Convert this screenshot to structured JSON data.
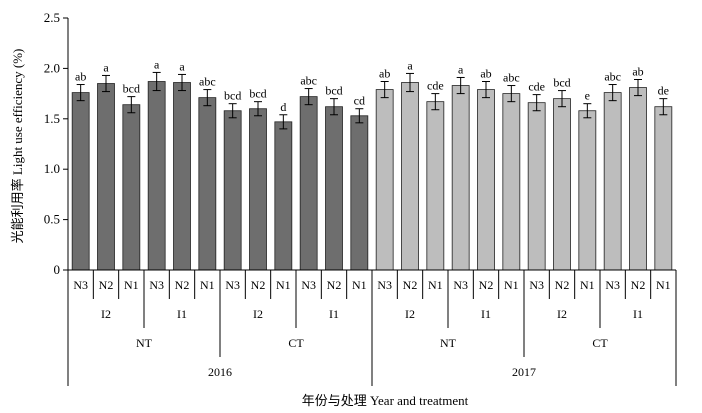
{
  "chart_data": {
    "type": "bar",
    "ylabel": "光能利用率 Light use efficiency (%)",
    "xlabel": "年份与处理 Year and treatment",
    "ylim": [
      0,
      2.5
    ],
    "yticks": [
      "0",
      "0.5",
      "1.0",
      "1.5",
      "2.0",
      "2.5"
    ],
    "ytick_values": [
      0,
      0.5,
      1.0,
      1.5,
      2.0,
      2.5
    ],
    "colors": {
      "2016": "#6e6e6e",
      "2017": "#bdbdbd",
      "edge": "#222222"
    },
    "bars": [
      {
        "year": "2016",
        "tillage": "NT",
        "irrigation": "I2",
        "n": "N3",
        "value": 1.76,
        "error": 0.08,
        "letter": "ab"
      },
      {
        "year": "2016",
        "tillage": "NT",
        "irrigation": "I2",
        "n": "N2",
        "value": 1.85,
        "error": 0.08,
        "letter": "a"
      },
      {
        "year": "2016",
        "tillage": "NT",
        "irrigation": "I2",
        "n": "N1",
        "value": 1.64,
        "error": 0.08,
        "letter": "bcd"
      },
      {
        "year": "2016",
        "tillage": "NT",
        "irrigation": "I1",
        "n": "N3",
        "value": 1.87,
        "error": 0.09,
        "letter": "a"
      },
      {
        "year": "2016",
        "tillage": "NT",
        "irrigation": "I1",
        "n": "N2",
        "value": 1.86,
        "error": 0.08,
        "letter": "a"
      },
      {
        "year": "2016",
        "tillage": "NT",
        "irrigation": "I1",
        "n": "N1",
        "value": 1.71,
        "error": 0.08,
        "letter": "abc"
      },
      {
        "year": "2016",
        "tillage": "CT",
        "irrigation": "I2",
        "n": "N3",
        "value": 1.58,
        "error": 0.07,
        "letter": "bcd"
      },
      {
        "year": "2016",
        "tillage": "CT",
        "irrigation": "I2",
        "n": "N2",
        "value": 1.6,
        "error": 0.07,
        "letter": "bcd"
      },
      {
        "year": "2016",
        "tillage": "CT",
        "irrigation": "I2",
        "n": "N1",
        "value": 1.47,
        "error": 0.07,
        "letter": "d"
      },
      {
        "year": "2016",
        "tillage": "CT",
        "irrigation": "I1",
        "n": "N3",
        "value": 1.72,
        "error": 0.08,
        "letter": "abc"
      },
      {
        "year": "2016",
        "tillage": "CT",
        "irrigation": "I1",
        "n": "N2",
        "value": 1.62,
        "error": 0.08,
        "letter": "bcd"
      },
      {
        "year": "2016",
        "tillage": "CT",
        "irrigation": "I1",
        "n": "N1",
        "value": 1.53,
        "error": 0.07,
        "letter": "cd"
      },
      {
        "year": "2017",
        "tillage": "NT",
        "irrigation": "I2",
        "n": "N3",
        "value": 1.79,
        "error": 0.08,
        "letter": "ab"
      },
      {
        "year": "2017",
        "tillage": "NT",
        "irrigation": "I2",
        "n": "N2",
        "value": 1.86,
        "error": 0.09,
        "letter": "a"
      },
      {
        "year": "2017",
        "tillage": "NT",
        "irrigation": "I2",
        "n": "N1",
        "value": 1.67,
        "error": 0.08,
        "letter": "cde"
      },
      {
        "year": "2017",
        "tillage": "NT",
        "irrigation": "I1",
        "n": "N3",
        "value": 1.83,
        "error": 0.08,
        "letter": "a"
      },
      {
        "year": "2017",
        "tillage": "NT",
        "irrigation": "I1",
        "n": "N2",
        "value": 1.79,
        "error": 0.08,
        "letter": "ab"
      },
      {
        "year": "2017",
        "tillage": "NT",
        "irrigation": "I1",
        "n": "N1",
        "value": 1.75,
        "error": 0.08,
        "letter": "abc"
      },
      {
        "year": "2017",
        "tillage": "CT",
        "irrigation": "I2",
        "n": "N3",
        "value": 1.66,
        "error": 0.08,
        "letter": "cde"
      },
      {
        "year": "2017",
        "tillage": "CT",
        "irrigation": "I2",
        "n": "N2",
        "value": 1.7,
        "error": 0.08,
        "letter": "bcd"
      },
      {
        "year": "2017",
        "tillage": "CT",
        "irrigation": "I2",
        "n": "N1",
        "value": 1.58,
        "error": 0.07,
        "letter": "e"
      },
      {
        "year": "2017",
        "tillage": "CT",
        "irrigation": "I1",
        "n": "N3",
        "value": 1.76,
        "error": 0.08,
        "letter": "abc"
      },
      {
        "year": "2017",
        "tillage": "CT",
        "irrigation": "I1",
        "n": "N2",
        "value": 1.81,
        "error": 0.08,
        "letter": "ab"
      },
      {
        "year": "2017",
        "tillage": "CT",
        "irrigation": "I1",
        "n": "N1",
        "value": 1.62,
        "error": 0.08,
        "letter": "de"
      }
    ]
  }
}
